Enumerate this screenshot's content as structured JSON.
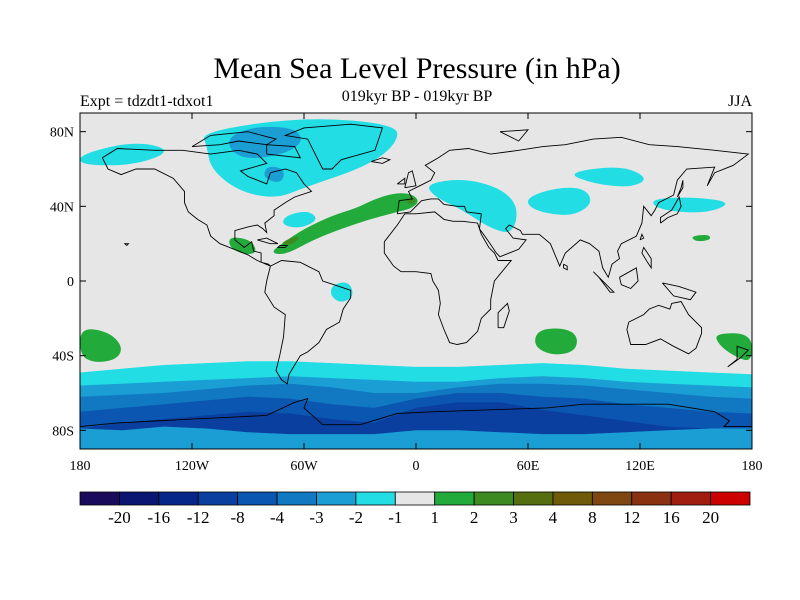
{
  "header": {
    "title": "Mean Sea Level Pressure (in hPa)",
    "subtitle": "019kyr BP - 019kyr BP",
    "experiment": "Expt = tdzdt1-tdxot1",
    "season": "JJA"
  },
  "chart_data": {
    "type": "contour-map",
    "projection": "cylindrical-equidistant",
    "lon_range": [
      -180,
      180
    ],
    "lat_range": [
      -90,
      90
    ],
    "lat_ticks": [
      {
        "value": 80,
        "label": "80N"
      },
      {
        "value": 40,
        "label": "40N"
      },
      {
        "value": 0,
        "label": "0"
      },
      {
        "value": -40,
        "label": "40S"
      },
      {
        "value": -80,
        "label": "80S"
      }
    ],
    "lon_ticks": [
      {
        "value": -180,
        "label": "180"
      },
      {
        "value": -120,
        "label": "120W"
      },
      {
        "value": -60,
        "label": "60W"
      },
      {
        "value": 0,
        "label": "0"
      },
      {
        "value": 60,
        "label": "60E"
      },
      {
        "value": 120,
        "label": "120E"
      },
      {
        "value": 180,
        "label": "180"
      }
    ],
    "colorbar": {
      "colors": [
        "#1a0a5c",
        "#0b1673",
        "#06268a",
        "#0a3fa0",
        "#0a56b0",
        "#1178c2",
        "#1a9ed4",
        "#22dde4",
        "#e6e6e6",
        "#22aa3a",
        "#3c8a20",
        "#556e10",
        "#6e5a08",
        "#7e4810",
        "#8a3210",
        "#a01e10",
        "#cc0000"
      ],
      "labels": [
        "-20",
        "-16",
        "-12",
        "-8",
        "-4",
        "-3",
        "-2",
        "-1",
        "1",
        "2",
        "3",
        "4",
        "8",
        "12",
        "16",
        "20"
      ]
    },
    "background_color": "#e6e6e6",
    "anomaly_regions": [
      {
        "level": "2",
        "color": "#22aa3a",
        "points": [
          [
            -72,
            20
          ],
          [
            -60,
            28
          ],
          [
            -45,
            35
          ],
          [
            -32,
            39
          ],
          [
            -22,
            44
          ],
          [
            -12,
            47
          ],
          [
            -3,
            47
          ],
          [
            2,
            43
          ],
          [
            -2,
            39
          ],
          [
            -10,
            37
          ],
          [
            -25,
            33
          ],
          [
            -40,
            28
          ],
          [
            -55,
            22
          ],
          [
            -70,
            14
          ],
          [
            -78,
            15
          ]
        ]
      },
      {
        "level": "3",
        "color": "#3c8a20",
        "points": [
          [
            -73,
            20
          ],
          [
            -65,
            24
          ],
          [
            -62,
            23
          ],
          [
            -68,
            19
          ]
        ]
      },
      {
        "level": "3",
        "color": "#3c8a20",
        "points": [
          [
            -6,
            44
          ],
          [
            -1,
            45
          ],
          [
            0,
            42
          ],
          [
            -4,
            41
          ]
        ]
      },
      {
        "level": "2",
        "color": "#22aa3a",
        "points": [
          [
            -180,
            -25
          ],
          [
            -165,
            -27
          ],
          [
            -157,
            -35
          ],
          [
            -160,
            -42
          ],
          [
            -172,
            -44
          ],
          [
            -180,
            -40
          ]
        ]
      },
      {
        "level": "2",
        "color": "#22aa3a",
        "points": [
          [
            65,
            -26
          ],
          [
            80,
            -25
          ],
          [
            87,
            -30
          ],
          [
            85,
            -38
          ],
          [
            73,
            -40
          ],
          [
            63,
            -35
          ]
        ]
      },
      {
        "level": "2",
        "color": "#22aa3a",
        "points": [
          [
            160,
            -28
          ],
          [
            180,
            -28
          ],
          [
            180,
            -44
          ],
          [
            170,
            -40
          ],
          [
            162,
            -34
          ]
        ]
      },
      {
        "level": "2",
        "color": "#22aa3a",
        "points": [
          [
            147,
            24
          ],
          [
            157,
            25
          ],
          [
            158,
            22
          ],
          [
            150,
            21
          ]
        ]
      },
      {
        "level": "2",
        "color": "#22aa3a",
        "points": [
          [
            -100,
            24
          ],
          [
            -88,
            22
          ],
          [
            -85,
            15
          ],
          0,
          [
            -92,
            14
          ],
          [
            -100,
            18
          ]
        ]
      },
      {
        "level": "-1",
        "color": "#22dde4",
        "points": [
          [
            -115,
            80
          ],
          [
            -60,
            88
          ],
          [
            -10,
            84
          ],
          [
            -10,
            74
          ],
          [
            -25,
            62
          ],
          [
            -60,
            50
          ],
          [
            -75,
            44
          ],
          [
            -95,
            48
          ],
          [
            -110,
            60
          ],
          [
            -112,
            72
          ]
        ]
      },
      {
        "level": "-2",
        "color": "#1a9ed4",
        "points": [
          [
            -100,
            78
          ],
          [
            -85,
            83
          ],
          [
            -65,
            82
          ],
          [
            -60,
            75
          ],
          [
            -70,
            68
          ],
          [
            -90,
            65
          ],
          [
            -100,
            70
          ]
        ]
      },
      {
        "level": "-2",
        "color": "#1a9ed4",
        "points": [
          [
            -80,
            62
          ],
          [
            -70,
            60
          ],
          [
            -72,
            52
          ],
          [
            -82,
            55
          ]
        ]
      },
      {
        "level": "-1",
        "color": "#22dde4",
        "points": [
          [
            -70,
            35
          ],
          [
            -58,
            38
          ],
          [
            -52,
            33
          ],
          [
            -62,
            28
          ],
          [
            -72,
            30
          ]
        ]
      },
      {
        "level": "-1",
        "color": "#22dde4",
        "points": [
          [
            5,
            52
          ],
          [
            25,
            55
          ],
          [
            45,
            50
          ],
          [
            55,
            40
          ],
          [
            52,
            25
          ],
          [
            40,
            28
          ],
          [
            25,
            38
          ],
          [
            10,
            45
          ]
        ]
      },
      {
        "level": "-1",
        "color": "#22dde4",
        "points": [
          [
            60,
            45
          ],
          [
            75,
            50
          ],
          [
            90,
            50
          ],
          [
            95,
            42
          ],
          [
            85,
            35
          ],
          [
            70,
            36
          ],
          [
            60,
            40
          ]
        ]
      },
      {
        "level": "-1",
        "color": "#22dde4",
        "points": [
          [
            80,
            58
          ],
          [
            110,
            62
          ],
          [
            125,
            55
          ],
          [
            115,
            50
          ],
          [
            95,
            52
          ]
        ]
      },
      {
        "level": "-1",
        "color": "#22dde4",
        "points": [
          [
            125,
            44
          ],
          [
            150,
            45
          ],
          [
            170,
            42
          ],
          [
            155,
            36
          ],
          [
            130,
            38
          ]
        ]
      },
      {
        "level": "-1",
        "color": "#22dde4",
        "points": [
          [
            -180,
            68
          ],
          [
            -150,
            75
          ],
          0,
          [
            -130,
            70
          ],
          [
            -150,
            62
          ],
          [
            -180,
            62
          ]
        ]
      },
      {
        "level": "-1",
        "color": "#22dde4",
        "points": [
          [
            -45,
            -2
          ],
          [
            -36,
            0
          ],
          [
            -33,
            -8
          ],
          [
            -40,
            -12
          ],
          [
            -46,
            -8
          ]
        ]
      }
    ],
    "southern_bands": [
      {
        "level": "-1",
        "color": "#22dde4",
        "lat_north": [
          -49,
          -47,
          -45,
          -44,
          -43,
          -43,
          -44,
          -45,
          -46,
          -46,
          -45,
          -44,
          -45,
          -47,
          -48,
          -49,
          -50
        ]
      },
      {
        "level": "-2",
        "color": "#1a9ed4",
        "lat_north": [
          -56,
          -55,
          -54,
          -53,
          -52,
          -51,
          -52,
          -53,
          -54,
          -54,
          -52,
          -51,
          -52,
          -54,
          -55,
          -56,
          -57
        ]
      },
      {
        "level": "-3",
        "color": "#1178c2",
        "lat_north": [
          -62,
          -61,
          -60,
          -58,
          -56,
          -55,
          -57,
          -60,
          -60,
          -57,
          -55,
          -55,
          -56,
          -58,
          -60,
          -62,
          -63
        ]
      },
      {
        "level": "-4",
        "color": "#0a56b0",
        "lat_north": [
          -70,
          -68,
          -66,
          -64,
          -62,
          -63,
          -66,
          -68,
          -63,
          -60,
          -60,
          -62,
          -63,
          -66,
          -68,
          -70,
          -71
        ]
      },
      {
        "level": "-8",
        "color": "#0a3fa0",
        "lat_north": [
          -79,
          -76,
          -74,
          -72,
          -70,
          -71,
          -74,
          -76,
          -68,
          -65,
          -65,
          -69,
          -72,
          -75,
          -78,
          -79,
          -80
        ]
      }
    ],
    "antarctic_band": {
      "level": "-2",
      "color": "#1a9ed4",
      "lat_north": [
        -79,
        -80,
        -78,
        -79,
        -81,
        -82,
        -82,
        -82,
        -80,
        -80,
        -81,
        -82,
        -82,
        -81,
        -80,
        -79,
        -79
      ]
    }
  }
}
